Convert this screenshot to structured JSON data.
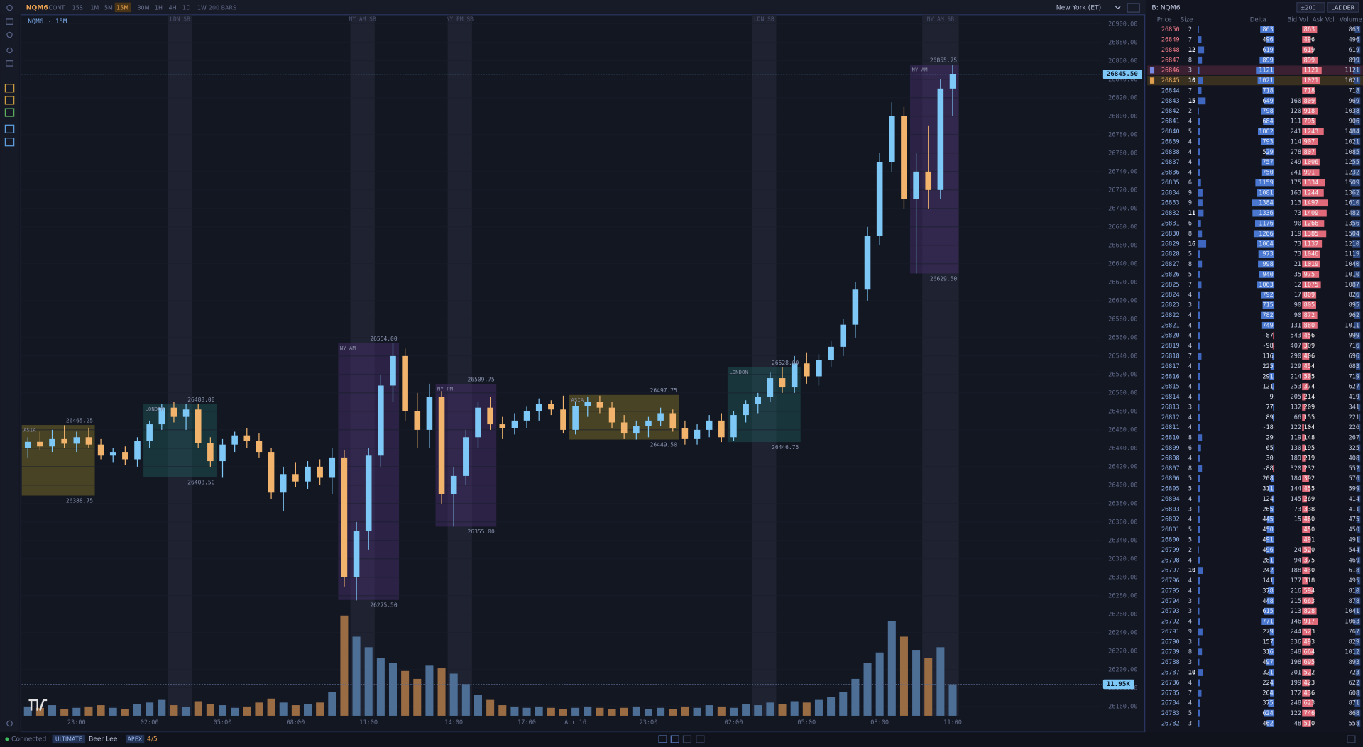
{
  "toolbar": {
    "symbol": "NQM6",
    "contract": "CONT",
    "timeframes": [
      "15S",
      "1M",
      "5M",
      "15M",
      "30M",
      "1H",
      "4H",
      "1D",
      "1W"
    ],
    "active_timeframe": "15M",
    "bars": "200 BARS",
    "timezone": "New York (ET)"
  },
  "chart_data": {
    "type": "candlestick",
    "title": "NQM6 · 15M",
    "categories": [
      null,
      null,
      null,
      null,
      "23:00",
      null,
      null,
      null,
      null,
      null,
      "02:00",
      null,
      null,
      null,
      null,
      null,
      "05:00",
      null,
      null,
      null,
      null,
      null,
      "08:00",
      null,
      null,
      null,
      null,
      null,
      "11:00",
      null,
      null,
      null,
      null,
      null,
      null,
      "14:00",
      null,
      null,
      null,
      null,
      null,
      "17:00",
      null,
      null,
      null,
      "Apr 16",
      null,
      null,
      null,
      null,
      null,
      "23:00",
      null,
      null,
      null,
      null,
      null,
      null,
      "02:00",
      null,
      null,
      null,
      null,
      null,
      "05:00",
      null,
      null,
      null,
      null,
      null,
      "08:00",
      null,
      null,
      null,
      null,
      null,
      "11:00"
    ],
    "open": [
      26440,
      26447,
      26442,
      26450,
      26445,
      26452,
      26444,
      26432,
      26436,
      26428,
      26448,
      26466,
      26484,
      26474,
      26482,
      26446,
      26426,
      26444,
      26454,
      26448,
      26436,
      26392,
      26412,
      26404,
      26420,
      26408,
      26430,
      26300,
      26350,
      26432,
      26508,
      26540,
      26480,
      26460,
      26496,
      26390,
      26410,
      26452,
      26484,
      26466,
      26462,
      26470,
      26480,
      26488,
      26482,
      26460,
      26486,
      26490,
      26484,
      26468,
      26456,
      26464,
      26470,
      26478,
      26462,
      26450,
      26460,
      26470,
      26452,
      26476,
      26488,
      26496,
      26516,
      26506,
      26532,
      26518,
      26536,
      26550,
      26574,
      26612,
      26670,
      26750,
      26800,
      26710,
      26740,
      26720,
      26830
    ],
    "high": [
      26452,
      26458,
      26460,
      26465,
      26458,
      26462,
      26450,
      26440,
      26442,
      26452,
      26470,
      26488,
      26490,
      26488,
      26488,
      26452,
      26450,
      26458,
      26462,
      26456,
      26440,
      26420,
      26425,
      26426,
      26428,
      26440,
      26438,
      26360,
      26440,
      26520,
      26554,
      26548,
      26500,
      26510,
      26502,
      26420,
      26460,
      26490,
      26496,
      26474,
      26478,
      26485,
      26494,
      26492,
      26497,
      26490,
      26496,
      26497,
      26490,
      26476,
      26470,
      26474,
      26484,
      26482,
      26470,
      26466,
      26476,
      26478,
      26480,
      26492,
      26500,
      26522,
      26528,
      26540,
      26544,
      26542,
      26556,
      26580,
      26620,
      26680,
      26760,
      26815,
      26810,
      26760,
      26790,
      26840,
      26855.75
    ],
    "low": [
      26430,
      26438,
      26436,
      26440,
      26436,
      26440,
      26428,
      26425,
      26422,
      26420,
      26440,
      26460,
      26468,
      26460,
      26440,
      26420,
      26408,
      26436,
      26440,
      26430,
      26385,
      26372,
      26398,
      26396,
      26400,
      26390,
      26290,
      26275,
      26330,
      26420,
      26490,
      26470,
      26440,
      26440,
      26380,
      26355,
      26400,
      26440,
      26460,
      26450,
      26455,
      26462,
      26470,
      26476,
      26456,
      26455,
      26474,
      26478,
      26462,
      26450,
      26449.5,
      26452,
      26464,
      26458,
      26444,
      26444,
      26452,
      26446.75,
      26448,
      26468,
      26478,
      26490,
      26500,
      26500,
      26510,
      26508,
      26528,
      26540,
      26560,
      26600,
      26660,
      26740,
      26700,
      26629.5,
      26700,
      26710,
      26800
    ],
    "close": [
      26447,
      26442,
      26450,
      26445,
      26452,
      26444,
      26432,
      26436,
      26428,
      26448,
      26466,
      26484,
      26474,
      26482,
      26446,
      26426,
      26444,
      26454,
      26448,
      26436,
      26392,
      26412,
      26404,
      26420,
      26408,
      26430,
      26300,
      26350,
      26432,
      26508,
      26540,
      26480,
      26460,
      26496,
      26390,
      26410,
      26452,
      26484,
      26466,
      26462,
      26470,
      26480,
      26488,
      26482,
      26460,
      26486,
      26490,
      26484,
      26468,
      26456,
      26464,
      26470,
      26478,
      26462,
      26450,
      26460,
      26470,
      26452,
      26476,
      26488,
      26496,
      26516,
      26506,
      26532,
      26518,
      26536,
      26550,
      26574,
      26612,
      26670,
      26750,
      26800,
      26710,
      26740,
      26720,
      26830,
      26845.5
    ],
    "volume": [
      3500,
      3000,
      4000,
      2500,
      3000,
      3500,
      4000,
      3000,
      2500,
      4500,
      5000,
      6000,
      4000,
      3500,
      5500,
      4500,
      4000,
      3000,
      3500,
      5000,
      6500,
      5000,
      4000,
      4500,
      5000,
      9000,
      38000,
      30000,
      26000,
      22000,
      20000,
      17000,
      14000,
      19000,
      18000,
      16000,
      12000,
      8000,
      6000,
      4000,
      3500,
      3000,
      3500,
      3000,
      2500,
      3000,
      3500,
      3000,
      2500,
      3000,
      3500,
      2500,
      3000,
      2500,
      3500,
      3000,
      4000,
      3500,
      3000,
      4500,
      4000,
      5000,
      4500,
      5500,
      5000,
      6000,
      7000,
      9000,
      14000,
      20000,
      24000,
      36000,
      30000,
      25000,
      22000,
      26000,
      11950
    ],
    "up_color": "#7ec8f8",
    "down_color": "#f2b46d",
    "volume_up_color": "#4d6f96",
    "volume_down_color": "#9a6c44",
    "ylim": [
      26150,
      26910
    ],
    "y2lim": [
      0,
      266000
    ],
    "grid": true,
    "yticks": [
      {
        "value": 26900,
        "label": "26900.00"
      },
      {
        "value": 26880,
        "label": "26880.00"
      },
      {
        "value": 26860,
        "label": "26860.00"
      },
      {
        "value": 26840,
        "label": "26840.00"
      },
      {
        "value": 26820,
        "label": "26820.00"
      },
      {
        "value": 26800,
        "label": "26800.00"
      },
      {
        "value": 26780,
        "label": "26780.00"
      },
      {
        "value": 26760,
        "label": "26760.00"
      },
      {
        "value": 26740,
        "label": "26740.00"
      },
      {
        "value": 26720,
        "label": "26720.00"
      },
      {
        "value": 26700,
        "label": "26700.00"
      },
      {
        "value": 26680,
        "label": "26680.00"
      },
      {
        "value": 26660,
        "label": "26660.00"
      },
      {
        "value": 26640,
        "label": "26640.00"
      },
      {
        "value": 26620,
        "label": "26620.00"
      },
      {
        "value": 26600,
        "label": "26600.00"
      },
      {
        "value": 26580,
        "label": "26580.00"
      },
      {
        "value": 26560,
        "label": "26560.00"
      },
      {
        "value": 26540,
        "label": "26540.00"
      },
      {
        "value": 26520,
        "label": "26520.00"
      },
      {
        "value": 26500,
        "label": "26500.00"
      },
      {
        "value": 26480,
        "label": "26480.00"
      },
      {
        "value": 26460,
        "label": "26460.00"
      },
      {
        "value": 26440,
        "label": "26440.00"
      },
      {
        "value": 26420,
        "label": "26420.00"
      },
      {
        "value": 26400,
        "label": "26400.00"
      },
      {
        "value": 26380,
        "label": "26380.00"
      },
      {
        "value": 26360,
        "label": "26360.00"
      },
      {
        "value": 26340,
        "label": "26340.00"
      },
      {
        "value": 26320,
        "label": "26320.00"
      },
      {
        "value": 26300,
        "label": "26300.00"
      },
      {
        "value": 26280,
        "label": "26280.00"
      },
      {
        "value": 26260,
        "label": "26260.00"
      },
      {
        "value": 26240,
        "label": "26240.00"
      },
      {
        "value": 26220,
        "label": "26220.00"
      },
      {
        "value": 26200,
        "label": "26200.00"
      },
      {
        "value": 26180,
        "label": "26180.00"
      },
      {
        "value": 26160,
        "label": "26160.00"
      }
    ],
    "last_price": {
      "value": 26845.5,
      "label": "26845.50"
    },
    "last_volume": {
      "value": 11950,
      "label": "11.95K"
    },
    "session_windows": [
      {
        "label": "LDN SB",
        "start": 12,
        "end": 13
      },
      {
        "label": "NY AM SB",
        "start": 27,
        "end": 28
      },
      {
        "label": "NY PM SB",
        "start": 35,
        "end": 36
      },
      {
        "label": "LDN SB",
        "start": 60,
        "end": 61
      },
      {
        "label": "NY AM SB",
        "start": 74,
        "end": 76
      }
    ],
    "session_boxes": [
      {
        "name": "ASIA",
        "start": 0,
        "end": 5,
        "color": "#8a7a28",
        "high": 26465.25,
        "low": 26388.75
      },
      {
        "name": "LONDON",
        "start": 10,
        "end": 15,
        "color": "#1f5a5a",
        "high": {
          "value": 26488,
          "label": "26488.00"
        },
        "low": {
          "value": 26408.5,
          "label": "26408.50"
        }
      },
      {
        "name": "NY AM",
        "start": 26,
        "end": 30,
        "color": "#4a3070",
        "high": {
          "value": 26554,
          "label": "26554.00"
        },
        "low": {
          "value": 26275.5,
          "label": "26275.50"
        }
      },
      {
        "name": "NY PM",
        "start": 34,
        "end": 38,
        "color": "#4a3070",
        "high": 26509.75,
        "low": {
          "value": 26355,
          "label": "26355.00"
        }
      },
      {
        "name": "ASIA",
        "start": 45,
        "end": 53,
        "color": "#8a7a28",
        "high": 26497.75,
        "low": {
          "value": 26449.5,
          "label": "26449.50"
        }
      },
      {
        "name": "LONDON",
        "start": 58,
        "end": 63,
        "color": "#1f5a5a",
        "high": {
          "value": 26528,
          "label": "26528.00"
        },
        "low": 26446.75
      },
      {
        "name": "NY AM",
        "start": 73,
        "end": 76,
        "color": "#4a3070",
        "high": 26855.75,
        "low": {
          "value": 26629.5,
          "label": "26629.50"
        }
      }
    ]
  },
  "ladder": {
    "title": "B: NQM6",
    "range": "±200",
    "mode": "LADDER",
    "columns": [
      "Price",
      "Size",
      "Delta",
      "Bid Vol",
      "Ask Vol",
      "Volume"
    ],
    "rows": [
      [
        26850,
        2,
        863,
        null,
        863,
        863
      ],
      [
        26849,
        7,
        496,
        null,
        496,
        496
      ],
      [
        26848,
        12,
        619,
        null,
        619,
        619
      ],
      [
        26847,
        8,
        899,
        null,
        899,
        899
      ],
      [
        26846,
        3,
        1121,
        null,
        1121,
        1121
      ],
      [
        26845,
        10,
        1021,
        null,
        1021,
        1021
      ],
      [
        26844,
        7,
        718,
        null,
        718,
        718
      ],
      [
        26843,
        15,
        649,
        160,
        809,
        969
      ],
      [
        26842,
        2,
        798,
        120,
        918,
        1038
      ],
      [
        26841,
        4,
        684,
        111,
        795,
        906
      ],
      [
        26840,
        5,
        1002,
        241,
        1243,
        1484
      ],
      [
        26839,
        4,
        793,
        114,
        907,
        1021
      ],
      [
        26838,
        4,
        529,
        278,
        807,
        1085
      ],
      [
        26837,
        4,
        757,
        249,
        1006,
        1255
      ],
      [
        26836,
        4,
        750,
        241,
        991,
        1232
      ],
      [
        26835,
        6,
        1159,
        175,
        1334,
        1509
      ],
      [
        26834,
        9,
        1081,
        163,
        1244,
        1362
      ],
      [
        26833,
        9,
        1384,
        113,
        1497,
        1610
      ],
      [
        26832,
        11,
        1336,
        73,
        1409,
        1482
      ],
      [
        26831,
        6,
        1176,
        90,
        1266,
        1356
      ],
      [
        26830,
        8,
        1266,
        119,
        1385,
        1504
      ],
      [
        26829,
        16,
        1064,
        73,
        1137,
        1210
      ],
      [
        26828,
        5,
        973,
        73,
        1046,
        1119
      ],
      [
        26827,
        8,
        998,
        21,
        1019,
        1040
      ],
      [
        26826,
        5,
        940,
        35,
        975,
        1010
      ],
      [
        26825,
        7,
        1063,
        12,
        1075,
        1087
      ],
      [
        26824,
        4,
        792,
        17,
        809,
        826
      ],
      [
        26823,
        3,
        715,
        90,
        805,
        895
      ],
      [
        26822,
        4,
        782,
        90,
        872,
        962
      ],
      [
        26821,
        4,
        749,
        131,
        880,
        1011
      ],
      [
        26820,
        4,
        -87,
        543,
        456,
        999
      ],
      [
        26819,
        4,
        -98,
        407,
        309,
        716
      ],
      [
        26818,
        7,
        116,
        290,
        406,
        696
      ],
      [
        26817,
        4,
        225,
        229,
        454,
        683
      ],
      [
        26816,
        4,
        291,
        214,
        505,
        719
      ],
      [
        26815,
        4,
        121,
        253,
        374,
        627
      ],
      [
        26814,
        4,
        9,
        205,
        214,
        419
      ],
      [
        26813,
        3,
        77,
        132,
        209,
        341
      ],
      [
        26812,
        4,
        89,
        66,
        155,
        221
      ],
      [
        26811,
        4,
        -18,
        122,
        104,
        226
      ],
      [
        26810,
        8,
        29,
        119,
        148,
        267
      ],
      [
        26809,
        6,
        65,
        130,
        195,
        325
      ],
      [
        26808,
        4,
        30,
        189,
        219,
        408
      ],
      [
        26807,
        8,
        -88,
        320,
        232,
        552
      ],
      [
        26806,
        5,
        208,
        184,
        392,
        576
      ],
      [
        26805,
        5,
        311,
        144,
        455,
        599
      ],
      [
        26804,
        4,
        124,
        145,
        269,
        414
      ],
      [
        26803,
        3,
        265,
        73,
        338,
        411
      ],
      [
        26802,
        4,
        445,
        15,
        460,
        475
      ],
      [
        26801,
        5,
        450,
        null,
        450,
        450
      ],
      [
        26800,
        5,
        491,
        null,
        491,
        491
      ],
      [
        26799,
        2,
        496,
        24,
        520,
        544
      ],
      [
        26798,
        4,
        281,
        94,
        375,
        469
      ],
      [
        26797,
        10,
        242,
        188,
        430,
        618
      ],
      [
        26796,
        4,
        141,
        177,
        318,
        495
      ],
      [
        26795,
        4,
        378,
        216,
        594,
        810
      ],
      [
        26794,
        3,
        448,
        215,
        663,
        878
      ],
      [
        26793,
        3,
        615,
        213,
        828,
        1041
      ],
      [
        26792,
        4,
        771,
        146,
        917,
        1063
      ],
      [
        26791,
        9,
        279,
        244,
        523,
        767
      ],
      [
        26790,
        3,
        157,
        336,
        493,
        829
      ],
      [
        26789,
        8,
        316,
        348,
        664,
        1012
      ],
      [
        26788,
        3,
        497,
        198,
        695,
        893
      ],
      [
        26787,
        10,
        321,
        201,
        522,
        723
      ],
      [
        26786,
        4,
        224,
        199,
        423,
        622
      ],
      [
        26785,
        7,
        264,
        172,
        436,
        608
      ],
      [
        26784,
        4,
        375,
        248,
        623,
        871
      ],
      [
        26783,
        5,
        624,
        122,
        746,
        868
      ],
      [
        26782,
        3,
        462,
        48,
        510,
        558
      ]
    ]
  },
  "status": {
    "connection": "Connected",
    "plan": "ULTIMATE",
    "user": "Beer Lee",
    "account_type": "APEX",
    "accounts": "4/5"
  }
}
